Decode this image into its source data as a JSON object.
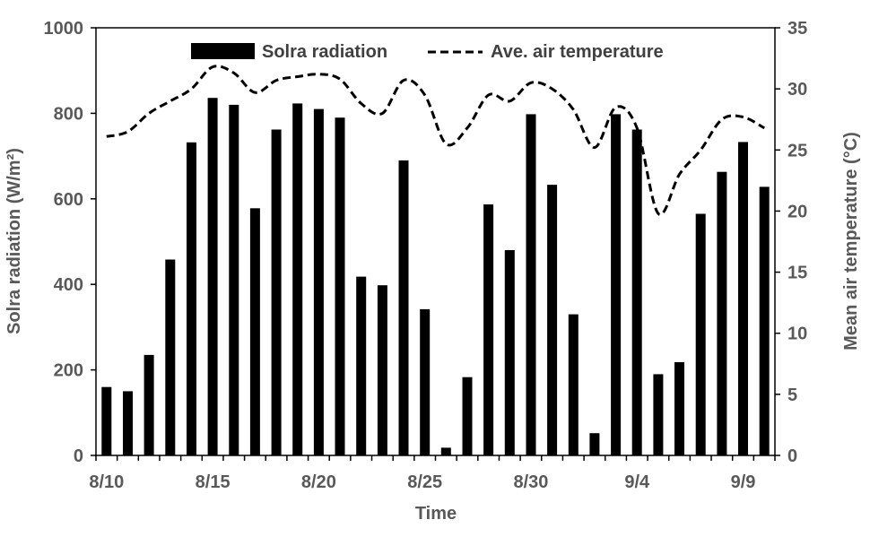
{
  "chart_data": {
    "type": "bar",
    "xlabel": "Time",
    "ylabel": "Solra radiation (W/m²)",
    "y2label": "Mean air temperature (°C)",
    "ylim": [
      0,
      1000
    ],
    "y2lim": [
      0,
      35
    ],
    "yticks": [
      "0",
      "200",
      "400",
      "600",
      "800",
      "1000"
    ],
    "y2ticks": [
      "0",
      "5",
      "10",
      "15",
      "20",
      "25",
      "30",
      "35"
    ],
    "categories": [
      "8/10",
      "8/11",
      "8/12",
      "8/13",
      "8/14",
      "8/15",
      "8/16",
      "8/17",
      "8/18",
      "8/19",
      "8/20",
      "8/21",
      "8/22",
      "8/23",
      "8/24",
      "8/25",
      "8/26",
      "8/27",
      "8/28",
      "8/29",
      "8/30",
      "8/31",
      "9/1",
      "9/2",
      "9/3",
      "9/4",
      "9/5",
      "9/6",
      "9/7",
      "9/8",
      "9/9",
      "9/10"
    ],
    "xtick_labels": [
      {
        "index": 0,
        "label": "8/10"
      },
      {
        "index": 5,
        "label": "8/15"
      },
      {
        "index": 10,
        "label": "8/20"
      },
      {
        "index": 15,
        "label": "8/25"
      },
      {
        "index": 20,
        "label": "8/30"
      },
      {
        "index": 25,
        "label": "9/4"
      },
      {
        "index": 30,
        "label": "9/9"
      }
    ],
    "series": [
      {
        "name": "Solra radiation",
        "type": "bar",
        "axis": "left",
        "color": "#000000",
        "values": [
          160,
          150,
          235,
          458,
          732,
          836,
          820,
          578,
          762,
          823,
          810,
          790,
          418,
          398,
          690,
          342,
          18,
          183,
          587,
          480,
          798,
          633,
          330,
          52,
          798,
          762,
          190,
          218,
          565,
          663,
          733,
          628
        ]
      },
      {
        "name": "Ave. air temperature",
        "type": "line",
        "style": "dashed",
        "axis": "right",
        "color": "#000000",
        "values": [
          26.1,
          26.5,
          28.0,
          29.0,
          30.0,
          31.8,
          31.3,
          29.7,
          30.7,
          31.0,
          31.2,
          30.8,
          28.8,
          28.0,
          30.7,
          29.5,
          25.5,
          26.8,
          29.5,
          29.0,
          30.5,
          30.0,
          28.3,
          25.2,
          28.5,
          26.8,
          19.8,
          23.0,
          25.0,
          27.5,
          27.7,
          26.8
        ]
      }
    ],
    "legend": {
      "position": "top",
      "entries": [
        "Solra radiation",
        "Ave. air temperature"
      ]
    },
    "grid": false
  }
}
